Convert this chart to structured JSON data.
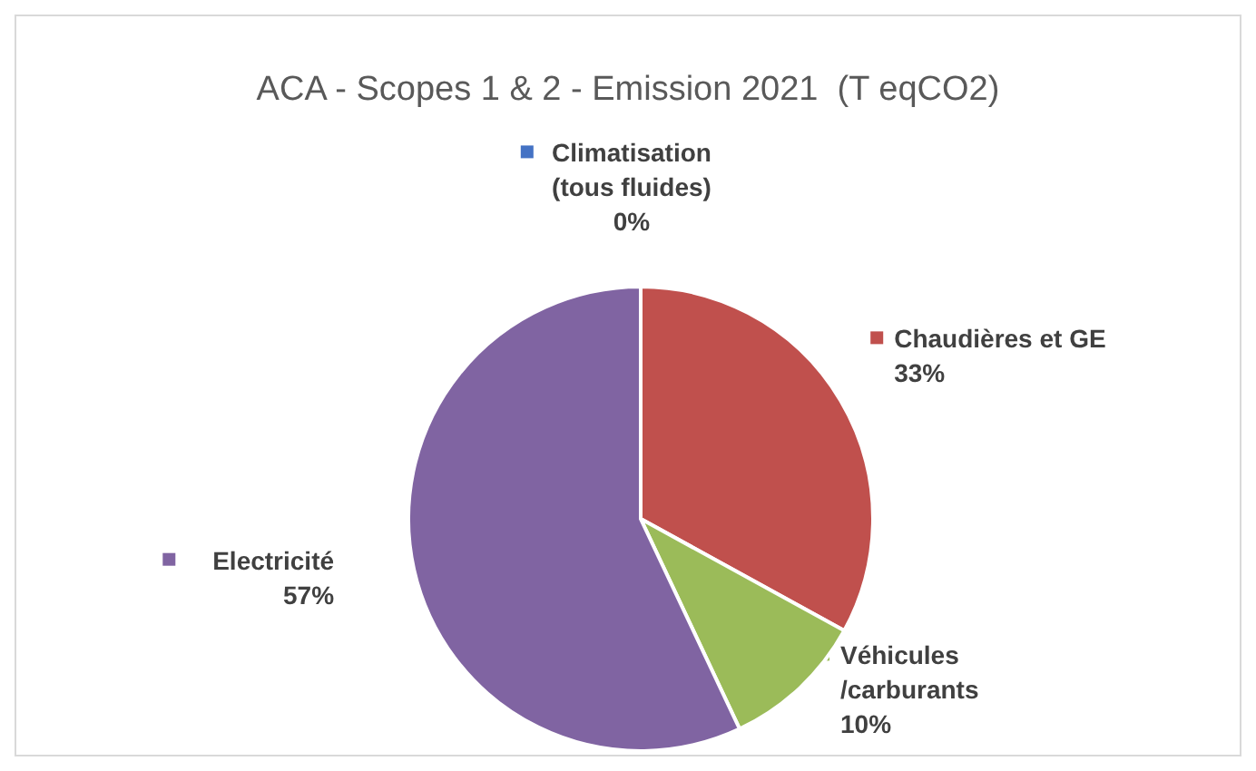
{
  "chart_data": {
    "type": "pie",
    "title": "ACA - Scopes 1 & 2 - Emission 2021  (T eqCO2)",
    "categories": [
      "Climatisation (tous fluides)",
      "Chaudières et GE",
      "Véhicules /carburants",
      "Electricité"
    ],
    "values": [
      0,
      33,
      10,
      57
    ],
    "value_labels": [
      "0%",
      "33%",
      "10%",
      "57%"
    ],
    "colors": [
      "#4472c4",
      "#c0504d",
      "#9bbb59",
      "#8064a2"
    ],
    "legend": "top"
  }
}
